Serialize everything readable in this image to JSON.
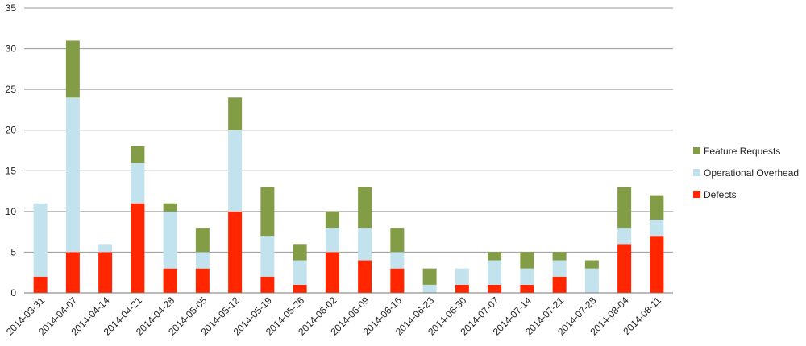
{
  "chart_data": {
    "type": "bar",
    "stacked": true,
    "categories": [
      "2014-03-31",
      "2014-04-07",
      "2014-04-14",
      "2014-04-21",
      "2014-04-28",
      "2014-05-05",
      "2014-05-12",
      "2014-05-19",
      "2014-05-26",
      "2014-06-02",
      "2014-06-09",
      "2014-06-16",
      "2014-06-23",
      "2014-06-30",
      "2014-07-07",
      "2014-07-14",
      "2014-07-21",
      "2014-07-28",
      "2014-08-04",
      "2014-08-11"
    ],
    "series": [
      {
        "name": "Defects",
        "color": "#ff2600",
        "values": [
          2,
          5,
          5,
          11,
          3,
          3,
          10,
          2,
          1,
          5,
          4,
          3,
          0,
          1,
          1,
          1,
          2,
          0,
          6,
          7
        ]
      },
      {
        "name": "Operational Overhead",
        "color": "#c2e3ee",
        "values": [
          9,
          19,
          1,
          5,
          7,
          2,
          10,
          5,
          3,
          3,
          4,
          2,
          1,
          2,
          3,
          2,
          2,
          3,
          2,
          2
        ]
      },
      {
        "name": "Feature Requests",
        "color": "#839c46",
        "values": [
          0,
          7,
          0,
          2,
          1,
          3,
          4,
          6,
          2,
          2,
          5,
          3,
          2,
          0,
          1,
          2,
          1,
          1,
          5,
          3
        ]
      }
    ],
    "yticks": [
      0,
      5,
      10,
      15,
      20,
      25,
      30,
      35
    ],
    "ylim": [
      0,
      35
    ],
    "title": "",
    "xlabel": "",
    "ylabel": "",
    "grid": true,
    "legend_position": "right",
    "legend_order": [
      "Feature Requests",
      "Operational Overhead",
      "Defects"
    ]
  }
}
